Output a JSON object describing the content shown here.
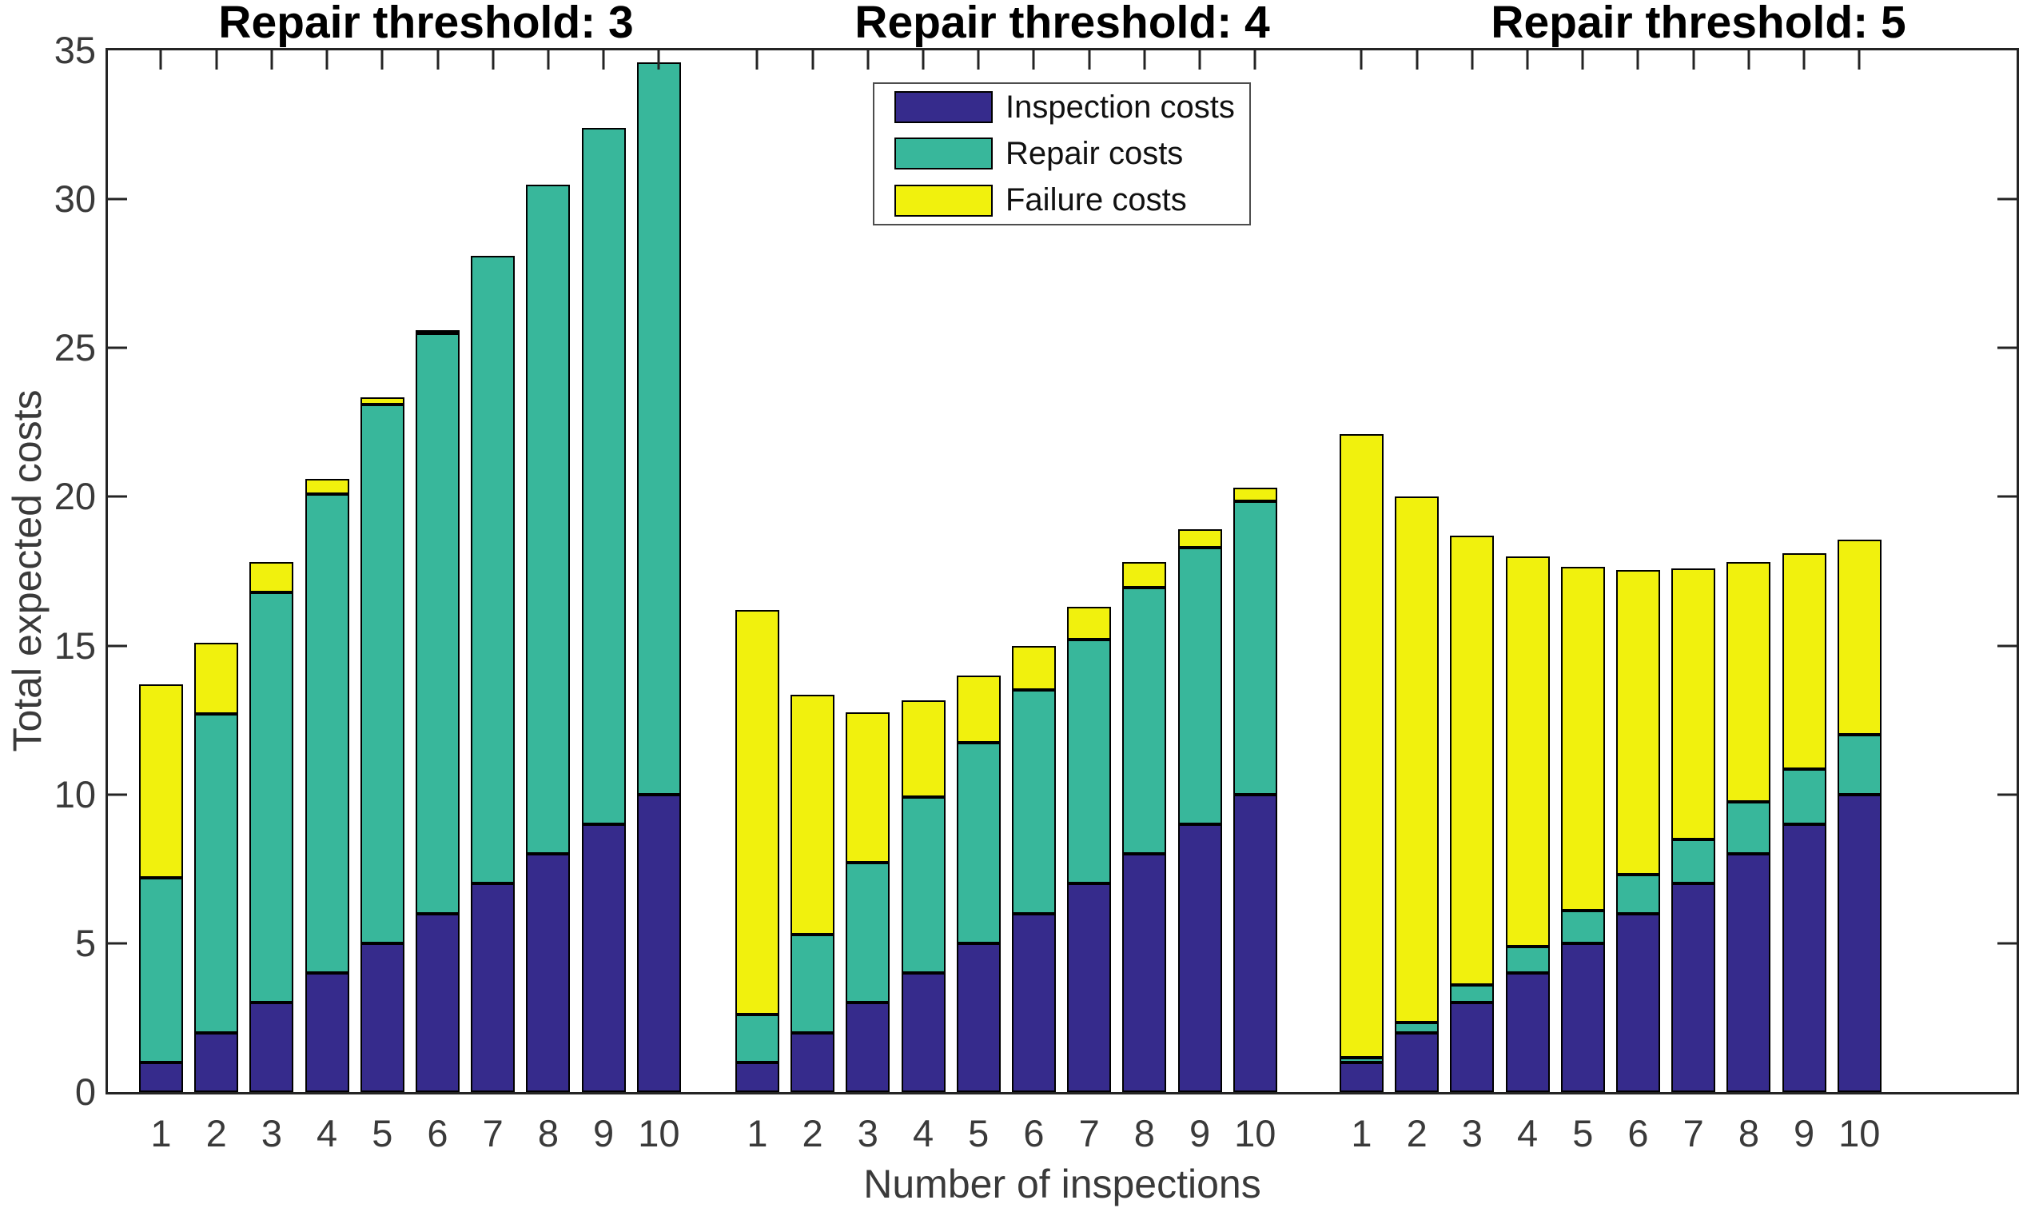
{
  "figure": {
    "ylabel": "Total expected costs",
    "xlabel": "Number of inspections",
    "y_ticks": [
      0,
      5,
      10,
      15,
      20,
      25,
      30,
      35
    ],
    "x_tick_labels": [
      "1",
      "2",
      "3",
      "4",
      "5",
      "6",
      "7",
      "8",
      "9",
      "10"
    ],
    "colors": {
      "inspection": "#362B8C",
      "repair": "#38B79B",
      "failure": "#F1F10D",
      "axis": "#242424",
      "tick_text": "#3A3A3A",
      "title_text": "#000000"
    },
    "legend": {
      "items": [
        {
          "label": "Inspection costs",
          "color_key": "inspection"
        },
        {
          "label": "Repair costs",
          "color_key": "repair"
        },
        {
          "label": "Failure costs",
          "color_key": "failure"
        }
      ]
    }
  },
  "chart_data": [
    {
      "type": "bar",
      "stacked": true,
      "title": "Repair threshold: 3",
      "categories": [
        1,
        2,
        3,
        4,
        5,
        6,
        7,
        8,
        9,
        10
      ],
      "ylim": [
        0,
        35
      ],
      "series": [
        {
          "name": "Inspection costs",
          "values": [
            1,
            2,
            3,
            4,
            5,
            6,
            7,
            8,
            9,
            10
          ]
        },
        {
          "name": "Repair costs",
          "values": [
            6.2,
            10.7,
            13.8,
            16.1,
            18.1,
            19.5,
            21.1,
            22.5,
            23.4,
            24.6
          ]
        },
        {
          "name": "Failure costs",
          "values": [
            6.5,
            2.4,
            1.0,
            0.5,
            0.25,
            0.1,
            0,
            0,
            0,
            0
          ]
        }
      ]
    },
    {
      "type": "bar",
      "stacked": true,
      "title": "Repair threshold: 4",
      "categories": [
        1,
        2,
        3,
        4,
        5,
        6,
        7,
        8,
        9,
        10
      ],
      "ylim": [
        0,
        35
      ],
      "series": [
        {
          "name": "Inspection costs",
          "values": [
            1,
            2,
            3,
            4,
            5,
            6,
            7,
            8,
            9,
            10
          ]
        },
        {
          "name": "Repair costs",
          "values": [
            1.6,
            3.3,
            4.7,
            5.9,
            6.75,
            7.5,
            8.2,
            8.95,
            9.3,
            9.85
          ]
        },
        {
          "name": "Failure costs",
          "values": [
            13.6,
            8.05,
            5.05,
            3.25,
            2.25,
            1.5,
            1.1,
            0.85,
            0.6,
            0.45
          ]
        }
      ]
    },
    {
      "type": "bar",
      "stacked": true,
      "title": "Repair threshold: 5",
      "categories": [
        1,
        2,
        3,
        4,
        5,
        6,
        7,
        8,
        9,
        10
      ],
      "ylim": [
        0,
        35
      ],
      "series": [
        {
          "name": "Inspection costs",
          "values": [
            1,
            2,
            3,
            4,
            5,
            6,
            7,
            8,
            9,
            10
          ]
        },
        {
          "name": "Repair costs",
          "values": [
            0.15,
            0.35,
            0.6,
            0.9,
            1.1,
            1.3,
            1.5,
            1.75,
            1.85,
            2.0
          ]
        },
        {
          "name": "Failure costs",
          "values": [
            20.95,
            17.65,
            15.1,
            13.1,
            11.55,
            10.25,
            9.1,
            8.05,
            7.25,
            6.55
          ]
        }
      ]
    }
  ]
}
